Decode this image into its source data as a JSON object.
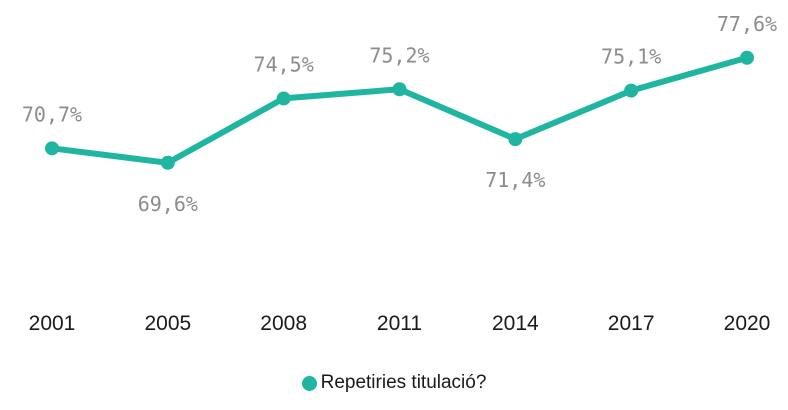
{
  "chart_data": {
    "type": "line",
    "categories": [
      "2001",
      "2005",
      "2008",
      "2011",
      "2014",
      "2017",
      "2020"
    ],
    "series": [
      {
        "name": "Repetiries titulació?",
        "values": [
          70.7,
          69.6,
          74.5,
          75.2,
          71.4,
          75.1,
          77.6
        ],
        "labels": [
          "70,7%",
          "69,6%",
          "74,5%",
          "75,2%",
          "71,4%",
          "75,1%",
          "77,6%"
        ],
        "color": "#1fb5a0"
      }
    ],
    "label_positions": [
      "above",
      "below",
      "above",
      "above",
      "below",
      "above",
      "above"
    ],
    "ylim": [
      50,
      82
    ],
    "grid": false,
    "legend": "bottom",
    "label_color": "#8c8c8c",
    "axis_text_color": "#1a1a1a"
  }
}
